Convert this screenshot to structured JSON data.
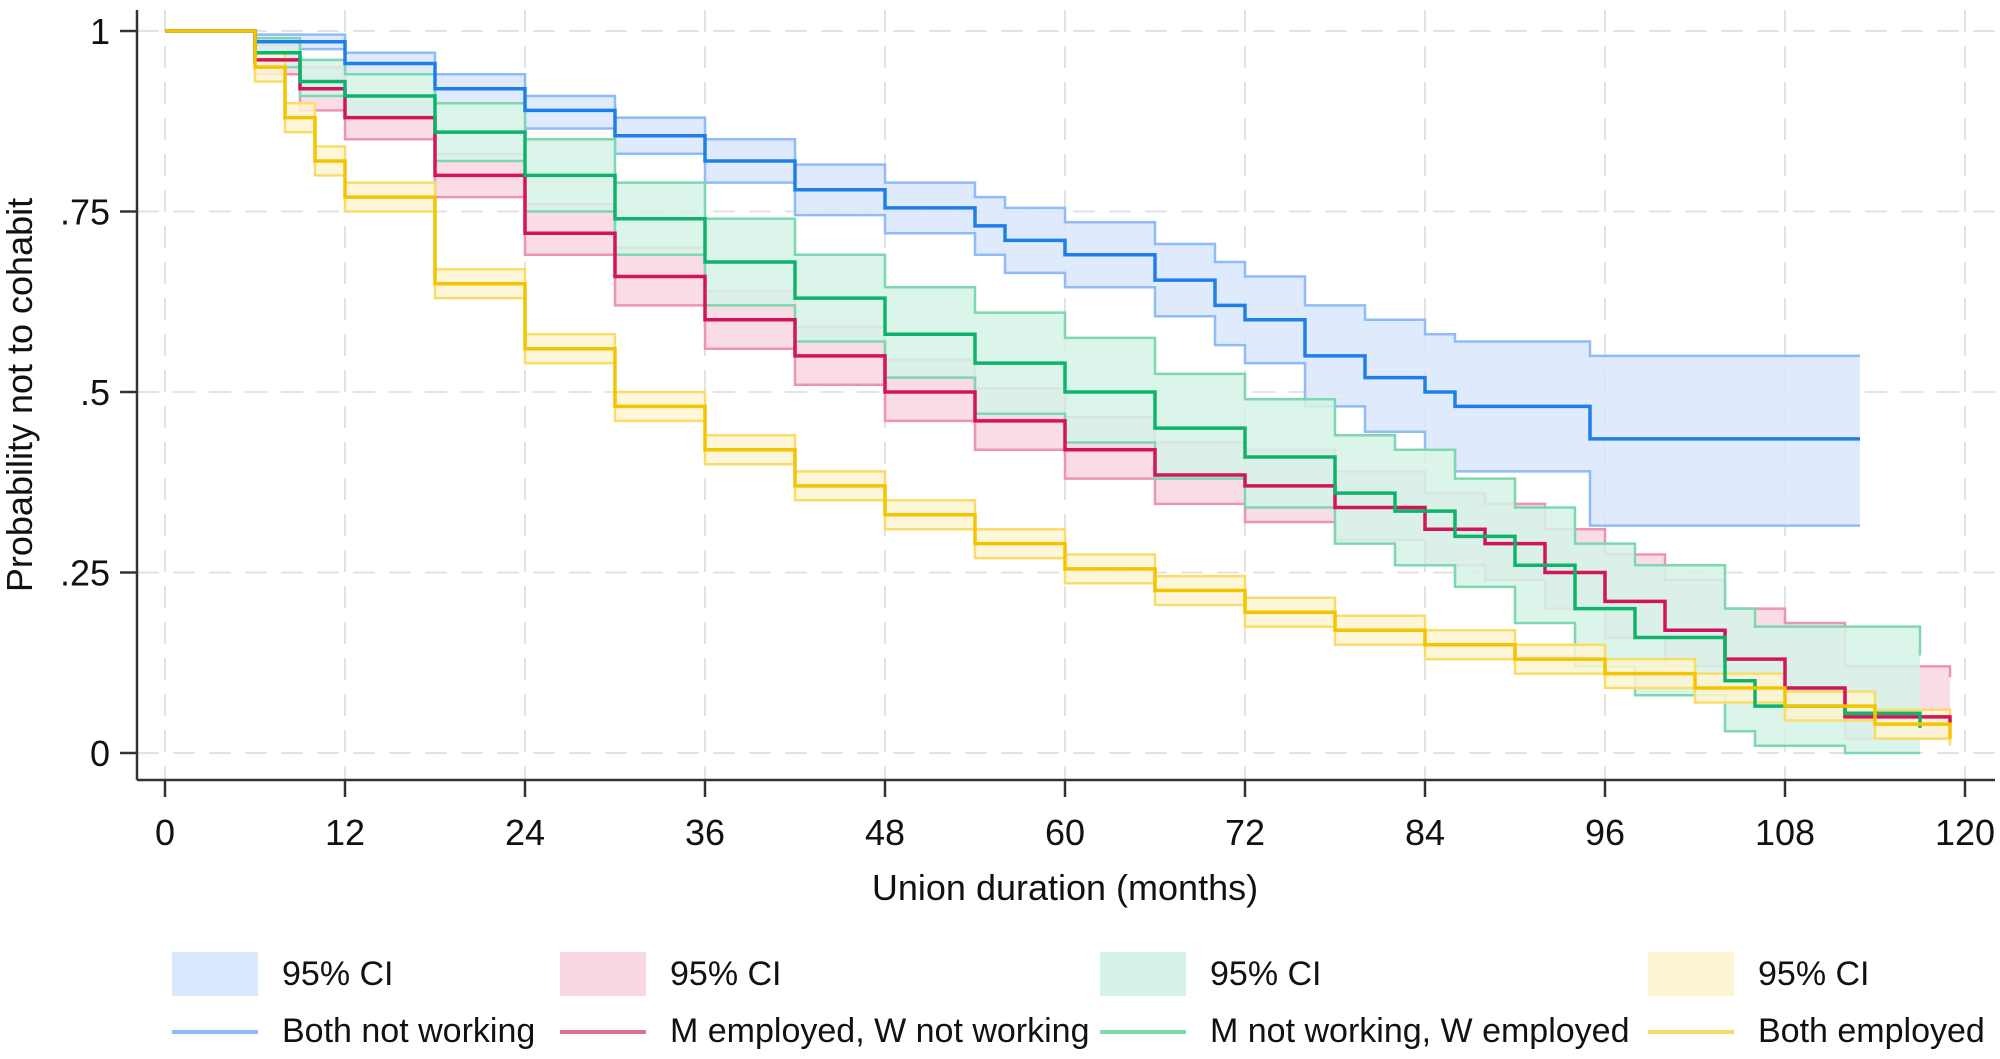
{
  "chart_data": {
    "type": "line",
    "subtype": "kaplan-meier-step",
    "title": "",
    "xlabel": "Union duration (months)",
    "ylabel": "Probability not to cohabit",
    "xlim": [
      0,
      120
    ],
    "ylim": [
      0,
      1
    ],
    "xticks": [
      0,
      12,
      24,
      36,
      48,
      60,
      72,
      84,
      96,
      108,
      120
    ],
    "xtick_labels": [
      "0",
      "12",
      "24",
      "36",
      "48",
      "60",
      "72",
      "84",
      "96",
      "108",
      "120"
    ],
    "yticks": [
      0,
      0.25,
      0.5,
      0.75,
      1
    ],
    "ytick_labels": [
      "0",
      ".25",
      ".5",
      ".75",
      "1"
    ],
    "grid": true,
    "legend_position": "bottom",
    "series": [
      {
        "name": "Both not working",
        "ci_label": "95% CI",
        "line_color": "#1f7fe8",
        "ci_fill": "#d9e8fc",
        "ci_edge": "#8fbcf4",
        "x": [
          0,
          4,
          6,
          12,
          18,
          24,
          30,
          36,
          42,
          48,
          54,
          56,
          60,
          66,
          70,
          72,
          76,
          80,
          84,
          86,
          95,
          113
        ],
        "y": [
          1,
          1,
          0.985,
          0.955,
          0.92,
          0.89,
          0.855,
          0.82,
          0.78,
          0.755,
          0.73,
          0.71,
          0.69,
          0.655,
          0.62,
          0.6,
          0.55,
          0.52,
          0.5,
          0.48,
          0.435,
          0.435
        ],
        "upper": [
          1,
          1,
          0.995,
          0.97,
          0.94,
          0.91,
          0.88,
          0.85,
          0.815,
          0.79,
          0.77,
          0.755,
          0.735,
          0.705,
          0.68,
          0.66,
          0.62,
          0.6,
          0.58,
          0.57,
          0.55,
          0.55
        ],
        "lower": [
          1,
          1,
          0.975,
          0.94,
          0.9,
          0.865,
          0.83,
          0.79,
          0.745,
          0.72,
          0.69,
          0.665,
          0.645,
          0.605,
          0.565,
          0.54,
          0.48,
          0.445,
          0.42,
          0.39,
          0.315,
          0.315
        ]
      },
      {
        "name": "M employed, W not working",
        "ci_label": "95% CI",
        "line_color": "#d3135a",
        "ci_fill": "#f8d6e2",
        "ci_edge": "#ec94b2",
        "x": [
          0,
          4,
          6,
          9,
          12,
          18,
          24,
          30,
          36,
          42,
          48,
          54,
          60,
          66,
          72,
          78,
          84,
          88,
          92,
          96,
          100,
          104,
          108,
          112,
          119
        ],
        "y": [
          1,
          1,
          0.96,
          0.92,
          0.88,
          0.8,
          0.72,
          0.66,
          0.6,
          0.55,
          0.5,
          0.46,
          0.42,
          0.385,
          0.37,
          0.34,
          0.31,
          0.29,
          0.25,
          0.21,
          0.17,
          0.13,
          0.09,
          0.05,
          0.04
        ],
        "upper": [
          1,
          1,
          0.98,
          0.95,
          0.91,
          0.83,
          0.76,
          0.7,
          0.64,
          0.59,
          0.545,
          0.505,
          0.465,
          0.43,
          0.42,
          0.39,
          0.36,
          0.345,
          0.31,
          0.275,
          0.24,
          0.2,
          0.18,
          0.12,
          0.105
        ],
        "lower": [
          1,
          1,
          0.94,
          0.89,
          0.85,
          0.77,
          0.69,
          0.62,
          0.56,
          0.51,
          0.46,
          0.42,
          0.38,
          0.345,
          0.32,
          0.295,
          0.26,
          0.24,
          0.2,
          0.16,
          0.12,
          0.08,
          0.05,
          0.02,
          0.015
        ]
      },
      {
        "name": "M not working, W employed",
        "ci_label": "95% CI",
        "line_color": "#0fb36b",
        "ci_fill": "#d6f3e8",
        "ci_edge": "#7dd8b0",
        "x": [
          0,
          4,
          6,
          9,
          12,
          18,
          24,
          30,
          36,
          42,
          48,
          54,
          60,
          66,
          72,
          78,
          82,
          86,
          90,
          94,
          98,
          104,
          106,
          112,
          117
        ],
        "y": [
          1,
          1,
          0.97,
          0.93,
          0.91,
          0.86,
          0.8,
          0.74,
          0.68,
          0.63,
          0.58,
          0.54,
          0.5,
          0.45,
          0.41,
          0.36,
          0.335,
          0.3,
          0.26,
          0.2,
          0.16,
          0.1,
          0.065,
          0.055,
          0.035
        ],
        "upper": [
          1,
          1,
          0.99,
          0.96,
          0.94,
          0.9,
          0.85,
          0.79,
          0.74,
          0.69,
          0.645,
          0.61,
          0.575,
          0.525,
          0.49,
          0.44,
          0.42,
          0.38,
          0.34,
          0.29,
          0.26,
          0.2,
          0.175,
          0.175,
          0.135
        ],
        "lower": [
          1,
          1,
          0.95,
          0.91,
          0.88,
          0.82,
          0.75,
          0.69,
          0.62,
          0.57,
          0.52,
          0.47,
          0.43,
          0.38,
          0.34,
          0.29,
          0.26,
          0.23,
          0.18,
          0.12,
          0.08,
          0.03,
          0.01,
          0.0,
          0.0
        ]
      },
      {
        "name": "Both employed",
        "ci_label": "95% CI",
        "line_color": "#f5c400",
        "ci_fill": "#fdf5d2",
        "ci_edge": "#f9dd6a",
        "x": [
          0,
          4,
          6,
          8,
          10,
          12,
          18,
          24,
          30,
          36,
          42,
          48,
          54,
          60,
          66,
          72,
          78,
          84,
          90,
          96,
          102,
          108,
          114,
          119
        ],
        "y": [
          1,
          1,
          0.95,
          0.88,
          0.82,
          0.77,
          0.65,
          0.56,
          0.48,
          0.42,
          0.37,
          0.33,
          0.29,
          0.255,
          0.225,
          0.195,
          0.17,
          0.15,
          0.13,
          0.11,
          0.09,
          0.065,
          0.04,
          0.02
        ],
        "upper": [
          1,
          1,
          0.97,
          0.9,
          0.84,
          0.79,
          0.67,
          0.58,
          0.5,
          0.44,
          0.39,
          0.35,
          0.31,
          0.275,
          0.245,
          0.215,
          0.19,
          0.17,
          0.15,
          0.13,
          0.11,
          0.085,
          0.06,
          0.035
        ],
        "lower": [
          1,
          1,
          0.93,
          0.86,
          0.8,
          0.75,
          0.63,
          0.54,
          0.46,
          0.4,
          0.35,
          0.31,
          0.27,
          0.235,
          0.205,
          0.175,
          0.15,
          0.13,
          0.11,
          0.09,
          0.07,
          0.045,
          0.02,
          0.01
        ]
      }
    ]
  }
}
